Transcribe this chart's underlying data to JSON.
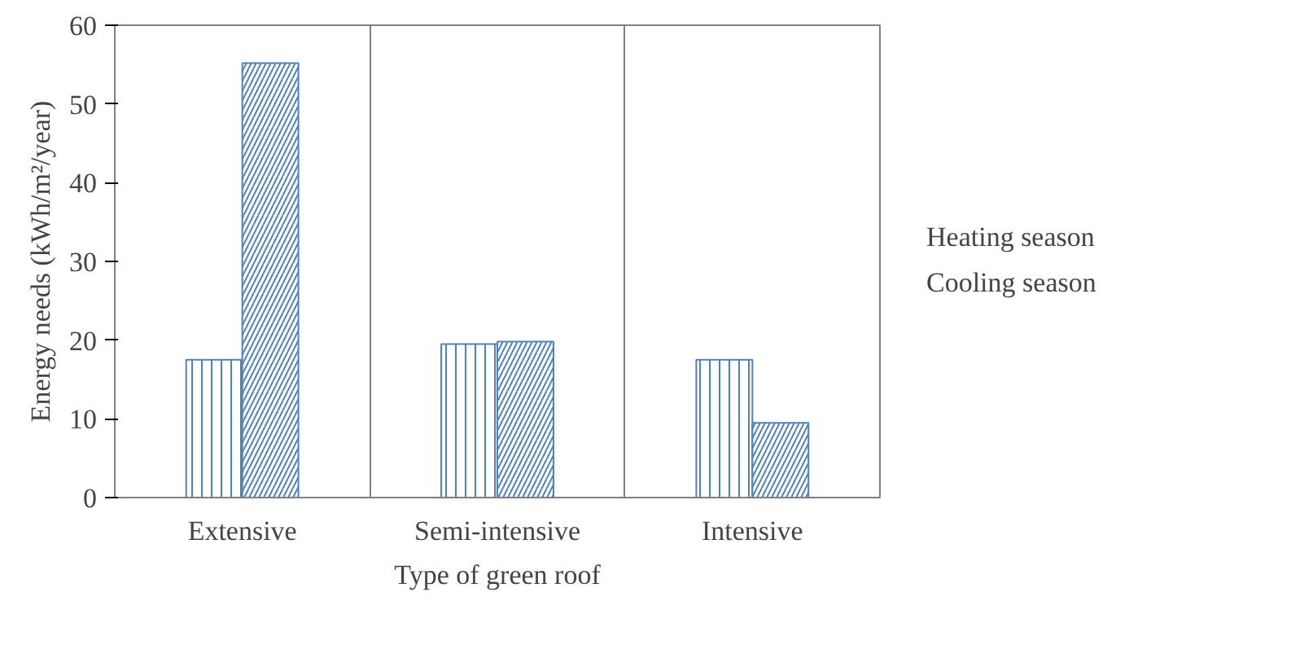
{
  "chart_data": {
    "type": "bar",
    "xlabel": "Type of green roof",
    "ylabel": "Energy needs (kWh/m²/year)",
    "categories": [
      "Extensive",
      "Semi-intensive",
      "Intensive"
    ],
    "series": [
      {
        "name": "Heating season",
        "color": "#4f81bd",
        "values": [
          17.5,
          19.5,
          17.5
        ]
      },
      {
        "name": "Cooling season",
        "color": "#4f81bd",
        "values": [
          55.2,
          19.8,
          9.5
        ]
      }
    ],
    "ylim": [
      0,
      60
    ],
    "yticks": [
      0,
      10,
      20,
      30,
      40,
      50,
      60
    ],
    "grid": "x",
    "legend": "right"
  }
}
